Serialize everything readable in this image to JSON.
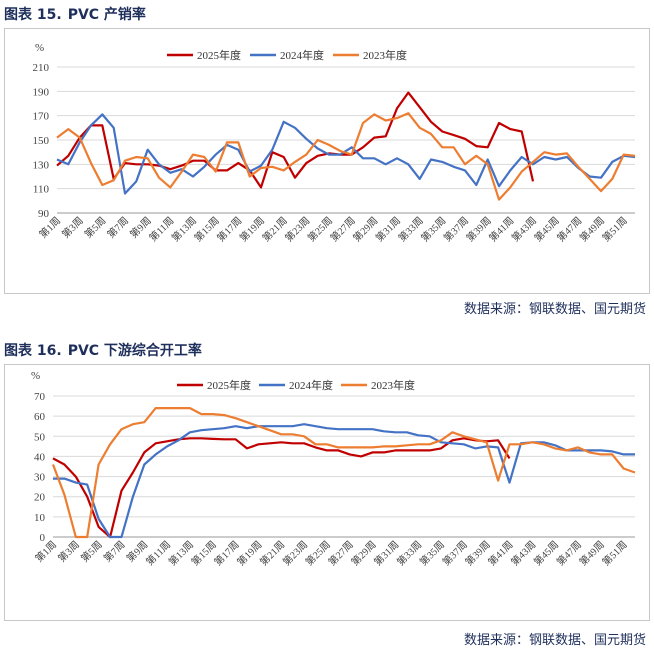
{
  "figures": [
    {
      "label": "图表 15.",
      "title": "PVC 产销率",
      "source": "数据来源：钢联数据、国元期货"
    },
    {
      "label": "图表 16.",
      "title": "PVC 下游综合开工率",
      "source": "数据来源：钢联数据、国元期货"
    }
  ],
  "colors": {
    "y2025": "#c00000",
    "y2024": "#4472c4",
    "y2023": "#ed7d31",
    "title": "#1f2f5c"
  },
  "chart_data": [
    {
      "type": "line",
      "unit": "%",
      "ylim": [
        90,
        210
      ],
      "yticks": [
        90,
        110,
        130,
        150,
        170,
        190,
        210
      ],
      "grid": true,
      "legend_position": "top",
      "x_tick_labels": [
        "第1周",
        "第3周",
        "第5周",
        "第7周",
        "第9周",
        "第11周",
        "第13周",
        "第15周",
        "第17周",
        "第19周",
        "第21周",
        "第23周",
        "第25周",
        "第27周",
        "第29周",
        "第31周",
        "第33周",
        "第35周",
        "第37周",
        "第39周",
        "第41周",
        "第43周",
        "第45周",
        "第47周",
        "第49周",
        "第51周"
      ],
      "series": [
        {
          "name": "2025年度",
          "color_key": "y2025",
          "values": [
            129,
            137,
            152,
            162,
            162,
            118,
            131,
            130,
            130,
            129,
            126,
            129,
            133,
            133,
            125,
            125,
            131,
            125,
            111,
            140,
            136,
            119,
            131,
            137,
            139,
            138,
            138,
            144,
            152,
            153,
            176,
            189,
            177,
            165,
            157,
            154,
            151,
            145,
            144,
            164,
            159,
            157,
            116
          ]
        },
        {
          "name": "2024年度",
          "color_key": "y2024",
          "values": [
            134,
            130,
            148,
            162,
            171,
            160,
            106,
            116,
            142,
            130,
            123,
            126,
            120,
            128,
            138,
            146,
            142,
            124,
            129,
            142,
            165,
            160,
            151,
            143,
            138,
            138,
            144,
            135,
            135,
            130,
            135,
            130,
            118,
            134,
            132,
            128,
            125,
            113,
            134,
            112,
            125,
            136,
            130,
            136,
            134,
            136,
            127,
            120,
            119,
            132,
            137,
            136
          ]
        },
        {
          "name": "2023年度",
          "color_key": "y2023",
          "values": [
            152,
            159,
            152,
            131,
            113,
            117,
            133,
            136,
            135,
            119,
            111,
            124,
            138,
            136,
            124,
            148,
            148,
            120,
            127,
            128,
            125,
            132,
            138,
            150,
            146,
            141,
            138,
            164,
            171,
            166,
            168,
            172,
            160,
            155,
            144,
            144,
            130,
            137,
            130,
            101,
            111,
            124,
            132,
            140,
            138,
            139,
            128,
            118,
            108,
            118,
            138,
            137
          ]
        }
      ]
    },
    {
      "type": "line",
      "unit": "%",
      "ylim": [
        0,
        70
      ],
      "yticks": [
        0,
        10,
        20,
        30,
        40,
        50,
        60,
        70
      ],
      "grid": true,
      "legend_position": "top",
      "x_tick_labels": [
        "第1周",
        "第3周",
        "第5周",
        "第7周",
        "第9周",
        "第11周",
        "第13周",
        "第15周",
        "第17周",
        "第19周",
        "第21周",
        "第23周",
        "第25周",
        "第27周",
        "第29周",
        "第31周",
        "第33周",
        "第35周",
        "第37周",
        "第39周",
        "第41周",
        "第43周",
        "第45周",
        "第47周",
        "第49周",
        "第51周"
      ],
      "series": [
        {
          "name": "2025年度",
          "color_key": "y2025",
          "values": [
            39,
            36,
            30,
            20,
            5,
            0,
            23,
            32,
            42,
            46.5,
            47.5,
            48.5,
            49,
            49,
            48.7,
            48.5,
            48.5,
            44,
            46,
            46.5,
            47,
            46.5,
            46.5,
            44.5,
            43,
            43,
            41,
            40,
            42,
            42,
            43,
            43,
            43,
            43,
            44,
            48,
            49,
            48,
            47.5,
            48,
            39
          ]
        },
        {
          "name": "2024年度",
          "color_key": "y2024",
          "values": [
            29,
            29,
            27,
            26,
            9,
            0,
            0,
            20,
            36,
            41,
            45,
            48,
            52,
            53,
            53.5,
            54,
            55,
            54,
            55,
            55,
            55,
            55,
            56,
            55,
            54,
            53.5,
            53.5,
            53.5,
            53.5,
            52.5,
            52,
            52,
            50.5,
            50,
            47,
            46.5,
            46,
            44,
            45,
            44.5,
            27,
            46.5,
            47,
            47,
            45.5,
            43,
            43,
            43,
            43,
            42.5,
            41,
            41
          ]
        },
        {
          "name": "2023年度",
          "color_key": "y2023",
          "values": [
            36,
            21,
            0,
            0,
            36,
            46,
            53.5,
            56,
            57,
            64,
            64,
            64,
            64,
            61,
            61,
            60.5,
            59,
            57,
            55,
            53,
            51,
            51,
            50,
            46,
            46,
            44.5,
            44.5,
            44.5,
            44.5,
            45,
            45,
            45.5,
            46,
            46,
            48,
            52,
            50,
            48.5,
            47,
            28,
            46,
            46,
            47,
            46,
            44,
            43,
            44.5,
            42,
            41,
            41,
            34,
            32
          ]
        }
      ]
    }
  ]
}
